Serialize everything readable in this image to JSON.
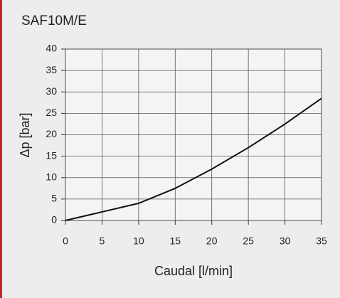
{
  "chart_data": {
    "type": "line",
    "title": "SAF10M/E",
    "x_label": "Caudal [l/min]",
    "y_label": "Δp [bar]",
    "x": [
      0,
      5,
      10,
      15,
      20,
      25,
      30,
      35
    ],
    "series": [
      {
        "name": null,
        "color": "#111111",
        "values": [
          0,
          2,
          4,
          7.5,
          12,
          17,
          22.5,
          28.5
        ]
      }
    ],
    "xlim": [
      0,
      35
    ],
    "xticks": [
      0,
      5,
      10,
      15,
      20,
      25,
      30,
      35
    ],
    "ylim": [
      0,
      40
    ],
    "yticks": [
      0,
      5,
      10,
      15,
      20,
      25,
      30,
      35,
      40
    ],
    "grid": true
  }
}
